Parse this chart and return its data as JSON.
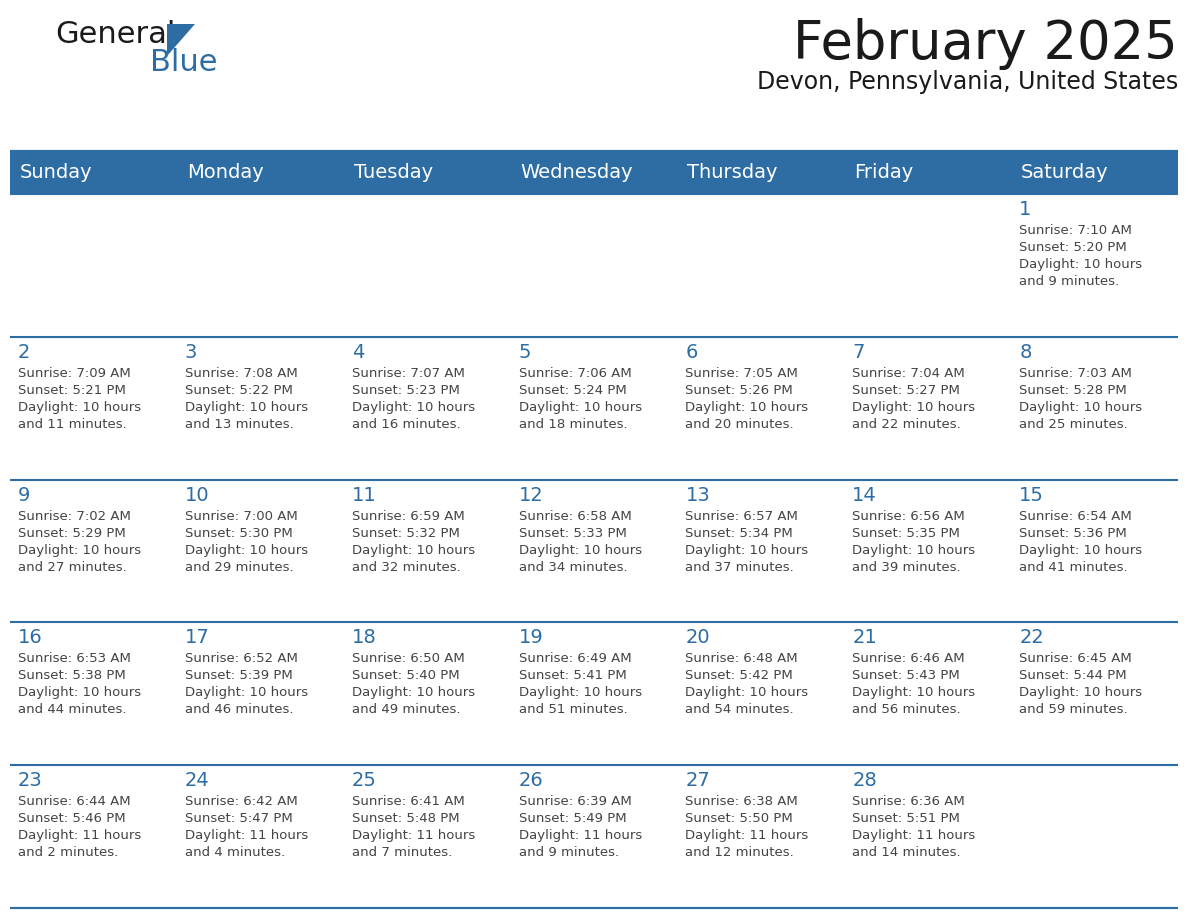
{
  "title": "February 2025",
  "subtitle": "Devon, Pennsylvania, United States",
  "days_of_week": [
    "Sunday",
    "Monday",
    "Tuesday",
    "Wednesday",
    "Thursday",
    "Friday",
    "Saturday"
  ],
  "header_bg": "#2E6DA4",
  "header_text": "#FFFFFF",
  "cell_bg": "#FFFFFF",
  "day_num_color": "#2E6DA4",
  "text_color": "#444444",
  "border_color": "#2E6DA4",
  "calendar_data": [
    [
      null,
      null,
      null,
      null,
      null,
      null,
      {
        "day": 1,
        "sunrise": "7:10 AM",
        "sunset": "5:20 PM",
        "daylight": "10 hours\nand 9 minutes."
      }
    ],
    [
      {
        "day": 2,
        "sunrise": "7:09 AM",
        "sunset": "5:21 PM",
        "daylight": "10 hours\nand 11 minutes."
      },
      {
        "day": 3,
        "sunrise": "7:08 AM",
        "sunset": "5:22 PM",
        "daylight": "10 hours\nand 13 minutes."
      },
      {
        "day": 4,
        "sunrise": "7:07 AM",
        "sunset": "5:23 PM",
        "daylight": "10 hours\nand 16 minutes."
      },
      {
        "day": 5,
        "sunrise": "7:06 AM",
        "sunset": "5:24 PM",
        "daylight": "10 hours\nand 18 minutes."
      },
      {
        "day": 6,
        "sunrise": "7:05 AM",
        "sunset": "5:26 PM",
        "daylight": "10 hours\nand 20 minutes."
      },
      {
        "day": 7,
        "sunrise": "7:04 AM",
        "sunset": "5:27 PM",
        "daylight": "10 hours\nand 22 minutes."
      },
      {
        "day": 8,
        "sunrise": "7:03 AM",
        "sunset": "5:28 PM",
        "daylight": "10 hours\nand 25 minutes."
      }
    ],
    [
      {
        "day": 9,
        "sunrise": "7:02 AM",
        "sunset": "5:29 PM",
        "daylight": "10 hours\nand 27 minutes."
      },
      {
        "day": 10,
        "sunrise": "7:00 AM",
        "sunset": "5:30 PM",
        "daylight": "10 hours\nand 29 minutes."
      },
      {
        "day": 11,
        "sunrise": "6:59 AM",
        "sunset": "5:32 PM",
        "daylight": "10 hours\nand 32 minutes."
      },
      {
        "day": 12,
        "sunrise": "6:58 AM",
        "sunset": "5:33 PM",
        "daylight": "10 hours\nand 34 minutes."
      },
      {
        "day": 13,
        "sunrise": "6:57 AM",
        "sunset": "5:34 PM",
        "daylight": "10 hours\nand 37 minutes."
      },
      {
        "day": 14,
        "sunrise": "6:56 AM",
        "sunset": "5:35 PM",
        "daylight": "10 hours\nand 39 minutes."
      },
      {
        "day": 15,
        "sunrise": "6:54 AM",
        "sunset": "5:36 PM",
        "daylight": "10 hours\nand 41 minutes."
      }
    ],
    [
      {
        "day": 16,
        "sunrise": "6:53 AM",
        "sunset": "5:38 PM",
        "daylight": "10 hours\nand 44 minutes."
      },
      {
        "day": 17,
        "sunrise": "6:52 AM",
        "sunset": "5:39 PM",
        "daylight": "10 hours\nand 46 minutes."
      },
      {
        "day": 18,
        "sunrise": "6:50 AM",
        "sunset": "5:40 PM",
        "daylight": "10 hours\nand 49 minutes."
      },
      {
        "day": 19,
        "sunrise": "6:49 AM",
        "sunset": "5:41 PM",
        "daylight": "10 hours\nand 51 minutes."
      },
      {
        "day": 20,
        "sunrise": "6:48 AM",
        "sunset": "5:42 PM",
        "daylight": "10 hours\nand 54 minutes."
      },
      {
        "day": 21,
        "sunrise": "6:46 AM",
        "sunset": "5:43 PM",
        "daylight": "10 hours\nand 56 minutes."
      },
      {
        "day": 22,
        "sunrise": "6:45 AM",
        "sunset": "5:44 PM",
        "daylight": "10 hours\nand 59 minutes."
      }
    ],
    [
      {
        "day": 23,
        "sunrise": "6:44 AM",
        "sunset": "5:46 PM",
        "daylight": "11 hours\nand 2 minutes."
      },
      {
        "day": 24,
        "sunrise": "6:42 AM",
        "sunset": "5:47 PM",
        "daylight": "11 hours\nand 4 minutes."
      },
      {
        "day": 25,
        "sunrise": "6:41 AM",
        "sunset": "5:48 PM",
        "daylight": "11 hours\nand 7 minutes."
      },
      {
        "day": 26,
        "sunrise": "6:39 AM",
        "sunset": "5:49 PM",
        "daylight": "11 hours\nand 9 minutes."
      },
      {
        "day": 27,
        "sunrise": "6:38 AM",
        "sunset": "5:50 PM",
        "daylight": "11 hours\nand 12 minutes."
      },
      {
        "day": 28,
        "sunrise": "6:36 AM",
        "sunset": "5:51 PM",
        "daylight": "11 hours\nand 14 minutes."
      },
      null
    ]
  ],
  "figsize": [
    11.88,
    9.18
  ],
  "dpi": 100
}
